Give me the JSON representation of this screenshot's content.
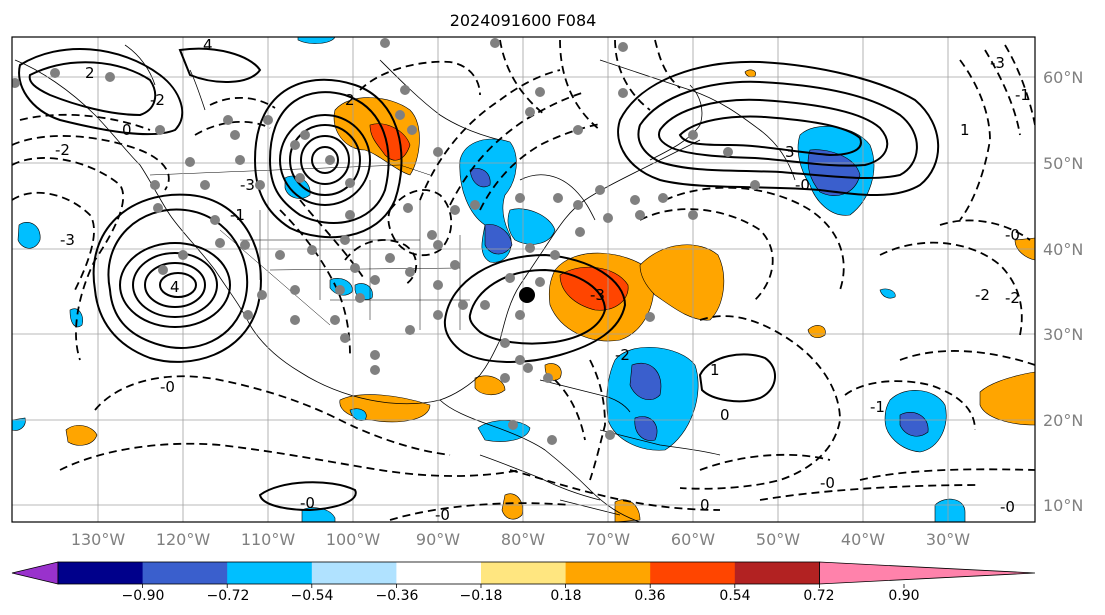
{
  "title": "2024091600 F084",
  "lon_labels": [
    "130°W",
    "120°W",
    "110°W",
    "100°W",
    "90°W",
    "80°W",
    "70°W",
    "60°W",
    "50°W",
    "40°W",
    "30°W"
  ],
  "lat_labels": [
    "60°N",
    "50°N",
    "40°N",
    "30°N",
    "20°N",
    "10°N"
  ],
  "colorbar": {
    "ticks": [
      "−0.90",
      "−0.72",
      "−0.54",
      "−0.36",
      "−0.18",
      "0.18",
      "0.36",
      "0.54",
      "0.72",
      "0.90"
    ],
    "colors": [
      "#9932cc",
      "#00008b",
      "#3a5fcd",
      "#00bfff",
      "#b0e2ff",
      "#ffffff",
      "#ffe680",
      "#ffa500",
      "#ff4500",
      "#b22222",
      "#ff82ab"
    ]
  },
  "contour_labels": [
    "4",
    "2",
    "-2",
    "0",
    "-2",
    "-3",
    "4",
    "-1",
    "-3",
    "2",
    "-0",
    "3",
    "-3",
    "-1",
    "1",
    "-2",
    "-2",
    "-0",
    "-0",
    "1",
    "-1",
    "0",
    "-2",
    "-3",
    "-0",
    "-0",
    "-0",
    "0",
    "-0"
  ],
  "legend_text": {
    "under": "",
    "over": ""
  }
}
